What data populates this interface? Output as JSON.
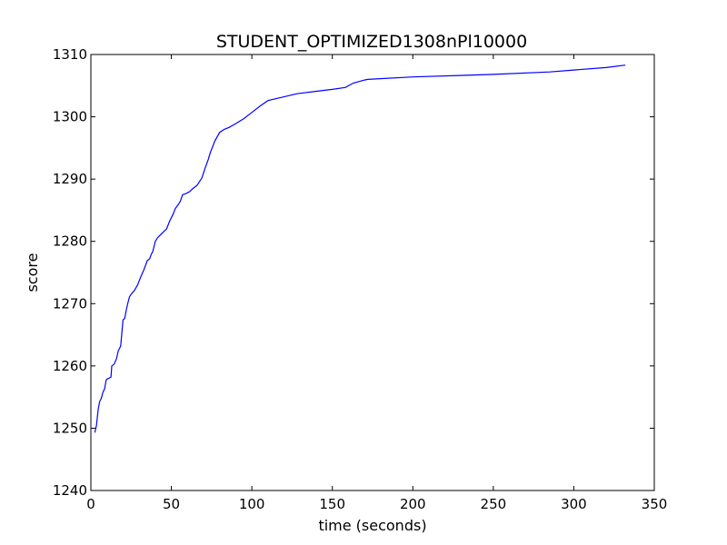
{
  "chart_data": {
    "type": "line",
    "title": "STUDENT_OPTIMIZED1308nPl10000",
    "xlabel": "time (seconds)",
    "ylabel": "score",
    "xlim": [
      0,
      350
    ],
    "ylim": [
      1240,
      1310
    ],
    "xticks": [
      0,
      50,
      100,
      150,
      200,
      250,
      300,
      350
    ],
    "yticks": [
      1240,
      1250,
      1260,
      1270,
      1280,
      1290,
      1300,
      1310
    ],
    "grid": false,
    "color": "#0000ff",
    "series": [
      {
        "x": [
          2.5,
          3.5,
          4.5,
          5.5,
          6.5,
          7.5,
          8.5,
          9.5,
          10,
          11,
          12.5,
          13,
          14.5,
          16,
          17,
          18.5,
          20,
          21,
          22,
          23,
          24,
          25,
          27,
          29,
          31,
          33,
          35,
          36.5,
          37.5,
          38.5,
          40,
          41.5,
          43,
          45,
          47,
          49,
          51,
          52.5,
          54,
          55.5,
          57,
          58.5,
          60,
          61.5,
          63,
          66,
          69,
          70,
          71,
          73,
          74,
          75,
          77,
          80,
          83,
          86,
          90,
          95,
          100,
          105,
          110,
          113,
          120,
          128,
          140,
          150,
          158,
          163,
          170,
          172,
          200,
          250,
          285,
          300,
          320,
          332
        ],
        "y": [
          1249.3,
          1250.5,
          1253,
          1254.3,
          1254.8,
          1255.8,
          1256.3,
          1257.7,
          1257.9,
          1258,
          1258.2,
          1260,
          1260.3,
          1261.2,
          1262.4,
          1263.2,
          1267.4,
          1267.6,
          1269,
          1270.1,
          1271.1,
          1271.5,
          1272.1,
          1273,
          1274.3,
          1275.5,
          1276.9,
          1277.2,
          1277.9,
          1278.4,
          1280,
          1280.6,
          1281,
          1281.5,
          1282,
          1283.3,
          1284.3,
          1285.3,
          1285.8,
          1286.4,
          1287.5,
          1287.6,
          1287.8,
          1288,
          1288.4,
          1289,
          1290.2,
          1291,
          1291.8,
          1293.2,
          1294.1,
          1294.8,
          1296.1,
          1297.5,
          1298,
          1298.3,
          1298.9,
          1299.7,
          1300.7,
          1301.7,
          1302.6,
          1302.8,
          1303.2,
          1303.7,
          1304.1,
          1304.4,
          1304.7,
          1305.4,
          1305.9,
          1306,
          1306.4,
          1306.8,
          1307.2,
          1307.5,
          1307.9,
          1308.3
        ]
      }
    ]
  }
}
